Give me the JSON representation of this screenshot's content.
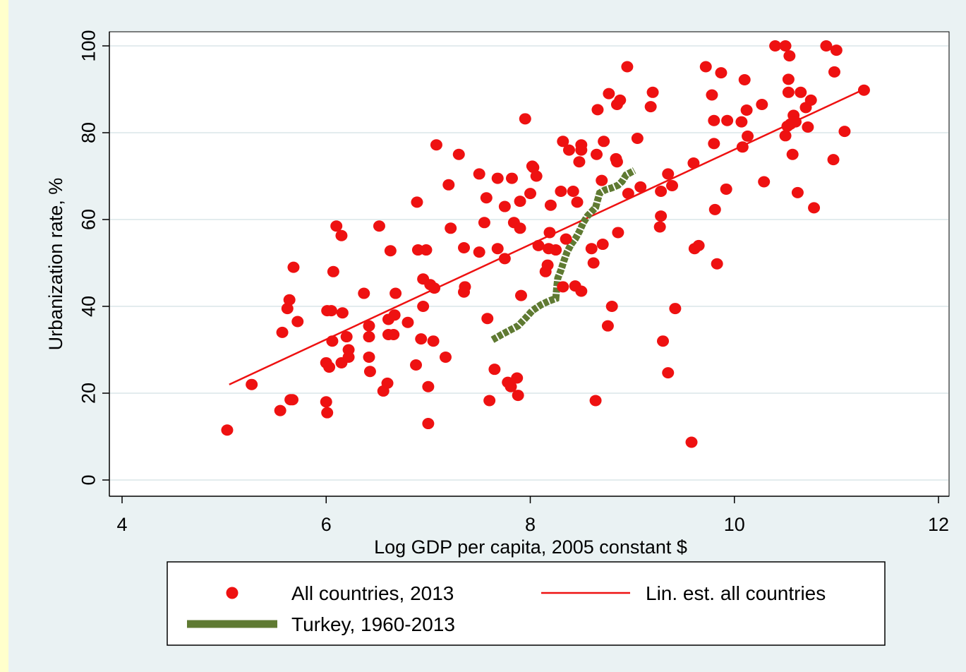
{
  "chart_data": {
    "type": "scatter",
    "xlabel": "Log GDP per capita, 2005 constant $",
    "ylabel": "Urbanization rate, %",
    "xlim": [
      4,
      12
    ],
    "ylim": [
      0,
      100
    ],
    "x_ticks": [
      4,
      6,
      8,
      10,
      12
    ],
    "y_ticks": [
      0,
      20,
      40,
      60,
      80,
      100
    ],
    "grid": "horizontal",
    "legend_position": "bottom",
    "series": [
      {
        "name": "All countries, 2013",
        "kind": "scatter",
        "color": "#ee1111",
        "points": [
          [
            5.03,
            11.5
          ],
          [
            5.27,
            22
          ],
          [
            5.55,
            16
          ],
          [
            5.57,
            34
          ],
          [
            5.62,
            39.5
          ],
          [
            5.64,
            41.5
          ],
          [
            5.65,
            18.5
          ],
          [
            5.67,
            18.5
          ],
          [
            5.68,
            49
          ],
          [
            5.72,
            36.5
          ],
          [
            6.0,
            27
          ],
          [
            6.0,
            18
          ],
          [
            6.01,
            15.5
          ],
          [
            6.01,
            39
          ],
          [
            6.03,
            26
          ],
          [
            6.05,
            39
          ],
          [
            6.06,
            32
          ],
          [
            6.07,
            48
          ],
          [
            6.1,
            58.5
          ],
          [
            6.15,
            56.3
          ],
          [
            6.15,
            27
          ],
          [
            6.16,
            38.5
          ],
          [
            6.2,
            33
          ],
          [
            6.22,
            30
          ],
          [
            6.22,
            28.3
          ],
          [
            6.37,
            43
          ],
          [
            6.42,
            35.5
          ],
          [
            6.42,
            33
          ],
          [
            6.42,
            28.3
          ],
          [
            6.43,
            25
          ],
          [
            6.52,
            58.5
          ],
          [
            6.56,
            20.5
          ],
          [
            6.6,
            22.3
          ],
          [
            6.61,
            37
          ],
          [
            6.61,
            33.5
          ],
          [
            6.63,
            52.8
          ],
          [
            6.66,
            33.5
          ],
          [
            6.67,
            38
          ],
          [
            6.68,
            43
          ],
          [
            6.8,
            36.3
          ],
          [
            6.88,
            26.5
          ],
          [
            6.89,
            64
          ],
          [
            6.9,
            53
          ],
          [
            6.93,
            32.5
          ],
          [
            6.95,
            40
          ],
          [
            6.95,
            46.3
          ],
          [
            6.98,
            53
          ],
          [
            7.0,
            13
          ],
          [
            7.0,
            21.5
          ],
          [
            7.02,
            45
          ],
          [
            7.06,
            44.2
          ],
          [
            7.05,
            32
          ],
          [
            7.08,
            77.2
          ],
          [
            7.17,
            28.3
          ],
          [
            7.2,
            68
          ],
          [
            7.22,
            58
          ],
          [
            7.3,
            75
          ],
          [
            7.35,
            43.3
          ],
          [
            7.35,
            53.5
          ],
          [
            7.36,
            44.5
          ],
          [
            7.5,
            70.5
          ],
          [
            7.5,
            52.5
          ],
          [
            7.55,
            59.3
          ],
          [
            7.57,
            65
          ],
          [
            7.58,
            37.2
          ],
          [
            7.6,
            18.3
          ],
          [
            7.65,
            25.5
          ],
          [
            7.68,
            53.3
          ],
          [
            7.68,
            69.5
          ],
          [
            7.75,
            51
          ],
          [
            7.75,
            63
          ],
          [
            7.78,
            22.5
          ],
          [
            7.81,
            21.5
          ],
          [
            7.82,
            69.5
          ],
          [
            7.84,
            59.3
          ],
          [
            7.87,
            23.5
          ],
          [
            7.88,
            19.5
          ],
          [
            7.9,
            58
          ],
          [
            7.9,
            64.2
          ],
          [
            7.91,
            42.5
          ],
          [
            7.95,
            83.2
          ],
          [
            8.0,
            66
          ],
          [
            8.02,
            72.3
          ],
          [
            8.03,
            72
          ],
          [
            8.06,
            70
          ],
          [
            8.08,
            54
          ],
          [
            8.15,
            48
          ],
          [
            8.17,
            49.5
          ],
          [
            8.18,
            53.3
          ],
          [
            8.19,
            57
          ],
          [
            8.2,
            63.3
          ],
          [
            8.25,
            53
          ],
          [
            8.3,
            66.5
          ],
          [
            8.32,
            78
          ],
          [
            8.32,
            44.5
          ],
          [
            8.35,
            55.5
          ],
          [
            8.38,
            76
          ],
          [
            8.42,
            66.5
          ],
          [
            8.44,
            44.7
          ],
          [
            8.46,
            64
          ],
          [
            8.48,
            73.3
          ],
          [
            8.5,
            77.2
          ],
          [
            8.5,
            76
          ],
          [
            8.5,
            43.5
          ],
          [
            8.6,
            53.3
          ],
          [
            8.62,
            50
          ],
          [
            8.64,
            18.3
          ],
          [
            8.65,
            75
          ],
          [
            8.66,
            85.3
          ],
          [
            8.7,
            69
          ],
          [
            8.71,
            54.3
          ],
          [
            8.72,
            78
          ],
          [
            8.76,
            35.5
          ],
          [
            8.77,
            89
          ],
          [
            8.8,
            40
          ],
          [
            8.84,
            74
          ],
          [
            8.85,
            73.3
          ],
          [
            8.85,
            86.5
          ],
          [
            8.86,
            57
          ],
          [
            8.88,
            87.5
          ],
          [
            8.95,
            95.2
          ],
          [
            8.96,
            66
          ],
          [
            9.05,
            78.7
          ],
          [
            9.08,
            67.5
          ],
          [
            9.18,
            86
          ],
          [
            9.2,
            89.3
          ],
          [
            9.27,
            58.3
          ],
          [
            9.28,
            66.5
          ],
          [
            9.28,
            60.8
          ],
          [
            9.3,
            32
          ],
          [
            9.35,
            70.5
          ],
          [
            9.35,
            24.7
          ],
          [
            9.39,
            67.8
          ],
          [
            9.42,
            39.5
          ],
          [
            9.58,
            8.7
          ],
          [
            9.6,
            73
          ],
          [
            9.61,
            53.3
          ],
          [
            9.65,
            54
          ],
          [
            9.72,
            95.2
          ],
          [
            9.78,
            88.7
          ],
          [
            9.8,
            82.8
          ],
          [
            9.8,
            77.5
          ],
          [
            9.81,
            62.3
          ],
          [
            9.83,
            49.8
          ],
          [
            9.87,
            93.8
          ],
          [
            9.92,
            67
          ],
          [
            9.93,
            82.8
          ],
          [
            10.07,
            82.5
          ],
          [
            10.08,
            76.7
          ],
          [
            10.1,
            92.2
          ],
          [
            10.12,
            85.2
          ],
          [
            10.13,
            79.2
          ],
          [
            10.27,
            86.5
          ],
          [
            10.29,
            68.7
          ],
          [
            10.4,
            100
          ],
          [
            10.5,
            79.3
          ],
          [
            10.52,
            81.5
          ],
          [
            10.5,
            100
          ],
          [
            10.53,
            89.3
          ],
          [
            10.53,
            92.3
          ],
          [
            10.54,
            97.7
          ],
          [
            10.55,
            82
          ],
          [
            10.57,
            75
          ],
          [
            10.58,
            84
          ],
          [
            10.6,
            82.5
          ],
          [
            10.62,
            66.2
          ],
          [
            10.65,
            89.3
          ],
          [
            10.7,
            85.8
          ],
          [
            10.72,
            81.3
          ],
          [
            10.75,
            87.5
          ],
          [
            10.78,
            62.7
          ],
          [
            10.9,
            100
          ],
          [
            10.97,
            73.8
          ],
          [
            10.98,
            94
          ],
          [
            11.0,
            99
          ],
          [
            11.08,
            80.3
          ],
          [
            11.27,
            89.8
          ]
        ]
      },
      {
        "name": "Lin. est. all countries",
        "kind": "line",
        "color": "#ee1111",
        "points": [
          [
            5.05,
            22
          ],
          [
            11.27,
            90
          ]
        ]
      },
      {
        "name": "Turkey, 1960-2013",
        "kind": "line",
        "color": "#5f7a32",
        "points": [
          [
            7.63,
            32.3
          ],
          [
            7.72,
            33.5
          ],
          [
            7.8,
            34.5
          ],
          [
            7.88,
            35.5
          ],
          [
            7.95,
            37.2
          ],
          [
            8.02,
            39
          ],
          [
            8.1,
            40.3
          ],
          [
            8.18,
            41.2
          ],
          [
            8.25,
            41.8
          ],
          [
            8.26,
            44.5
          ],
          [
            8.27,
            46.5
          ],
          [
            8.3,
            48.3
          ],
          [
            8.33,
            50.5
          ],
          [
            8.36,
            52.5
          ],
          [
            8.4,
            54.3
          ],
          [
            8.44,
            55.5
          ],
          [
            8.48,
            57.2
          ],
          [
            8.52,
            59.3
          ],
          [
            8.56,
            60.8
          ],
          [
            8.6,
            61.8
          ],
          [
            8.64,
            62.8
          ],
          [
            8.66,
            64.5
          ],
          [
            8.68,
            66.1
          ],
          [
            8.73,
            66.8
          ],
          [
            8.8,
            67.3
          ],
          [
            8.86,
            67.9
          ],
          [
            8.9,
            68.8
          ],
          [
            8.94,
            70.3
          ],
          [
            8.98,
            70.8
          ],
          [
            9.02,
            71.3
          ]
        ]
      }
    ]
  }
}
